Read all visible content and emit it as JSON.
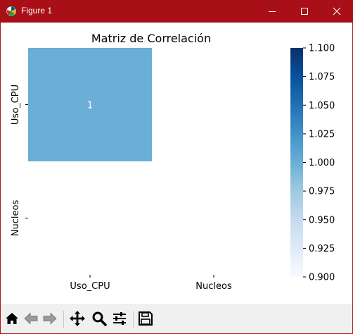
{
  "window": {
    "title": "Figure 1"
  },
  "chart_data": {
    "type": "heatmap",
    "title": "Matriz de Correlación",
    "x_categories": [
      "Uso_CPU",
      "Nucleos"
    ],
    "y_categories": [
      "Uso_CPU",
      "Nucleos"
    ],
    "matrix": [
      [
        1,
        null
      ],
      [
        null,
        null
      ]
    ],
    "cell_labels": [
      [
        "1",
        ""
      ],
      [
        "",
        ""
      ]
    ],
    "colormap": "Blues",
    "colorbar": {
      "range": [
        0.9,
        1.1
      ],
      "ticks": [
        "0.900",
        "0.925",
        "0.950",
        "0.975",
        "1.000",
        "1.025",
        "1.050",
        "1.075",
        "1.100"
      ]
    },
    "colors": {
      "low": "#f7fbff",
      "mid": "#6aaed6",
      "high": "#08306b"
    }
  },
  "toolbar": {
    "buttons": [
      "home-icon",
      "back-arrow-icon",
      "forward-arrow-icon",
      "pan-icon",
      "zoom-icon",
      "configure-subplots-icon",
      "save-icon"
    ]
  }
}
